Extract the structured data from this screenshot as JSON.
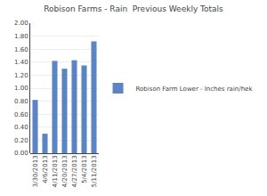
{
  "chart_data": {
    "type": "bar",
    "title": "Robison Farms - Rain  Previous Weekly Totals",
    "categories": [
      "3/30/2013",
      "4/6/2013",
      "4/11/2013",
      "4/20/2013",
      "4/27/2013",
      "5/4/2013",
      "5/11/2013"
    ],
    "series": [
      {
        "name": "Robison Farm Lower - Inches rain/hek",
        "color": "#5b84c4",
        "values": [
          0.82,
          0.3,
          1.42,
          1.3,
          1.43,
          1.35,
          1.72
        ]
      }
    ],
    "ylim": [
      0.0,
      2.0
    ],
    "yticks": [
      {
        "value": 0,
        "label": "0.00"
      },
      {
        "value": 0.2,
        "label": "0.20"
      },
      {
        "value": 0.4,
        "label": "0.40"
      },
      {
        "value": 0.6,
        "label": "0.60"
      },
      {
        "value": 0.8,
        "label": "0.80"
      },
      {
        "value": 1,
        "label": "1.00"
      },
      {
        "value": 1.2,
        "label": "1.20"
      },
      {
        "value": 1.4,
        "label": "1.40"
      },
      {
        "value": 1.6,
        "label": "1.60"
      },
      {
        "value": 1.8,
        "label": "1.80"
      },
      {
        "value": 2,
        "label": "2.00"
      }
    ],
    "grid": true,
    "legend": "right"
  }
}
